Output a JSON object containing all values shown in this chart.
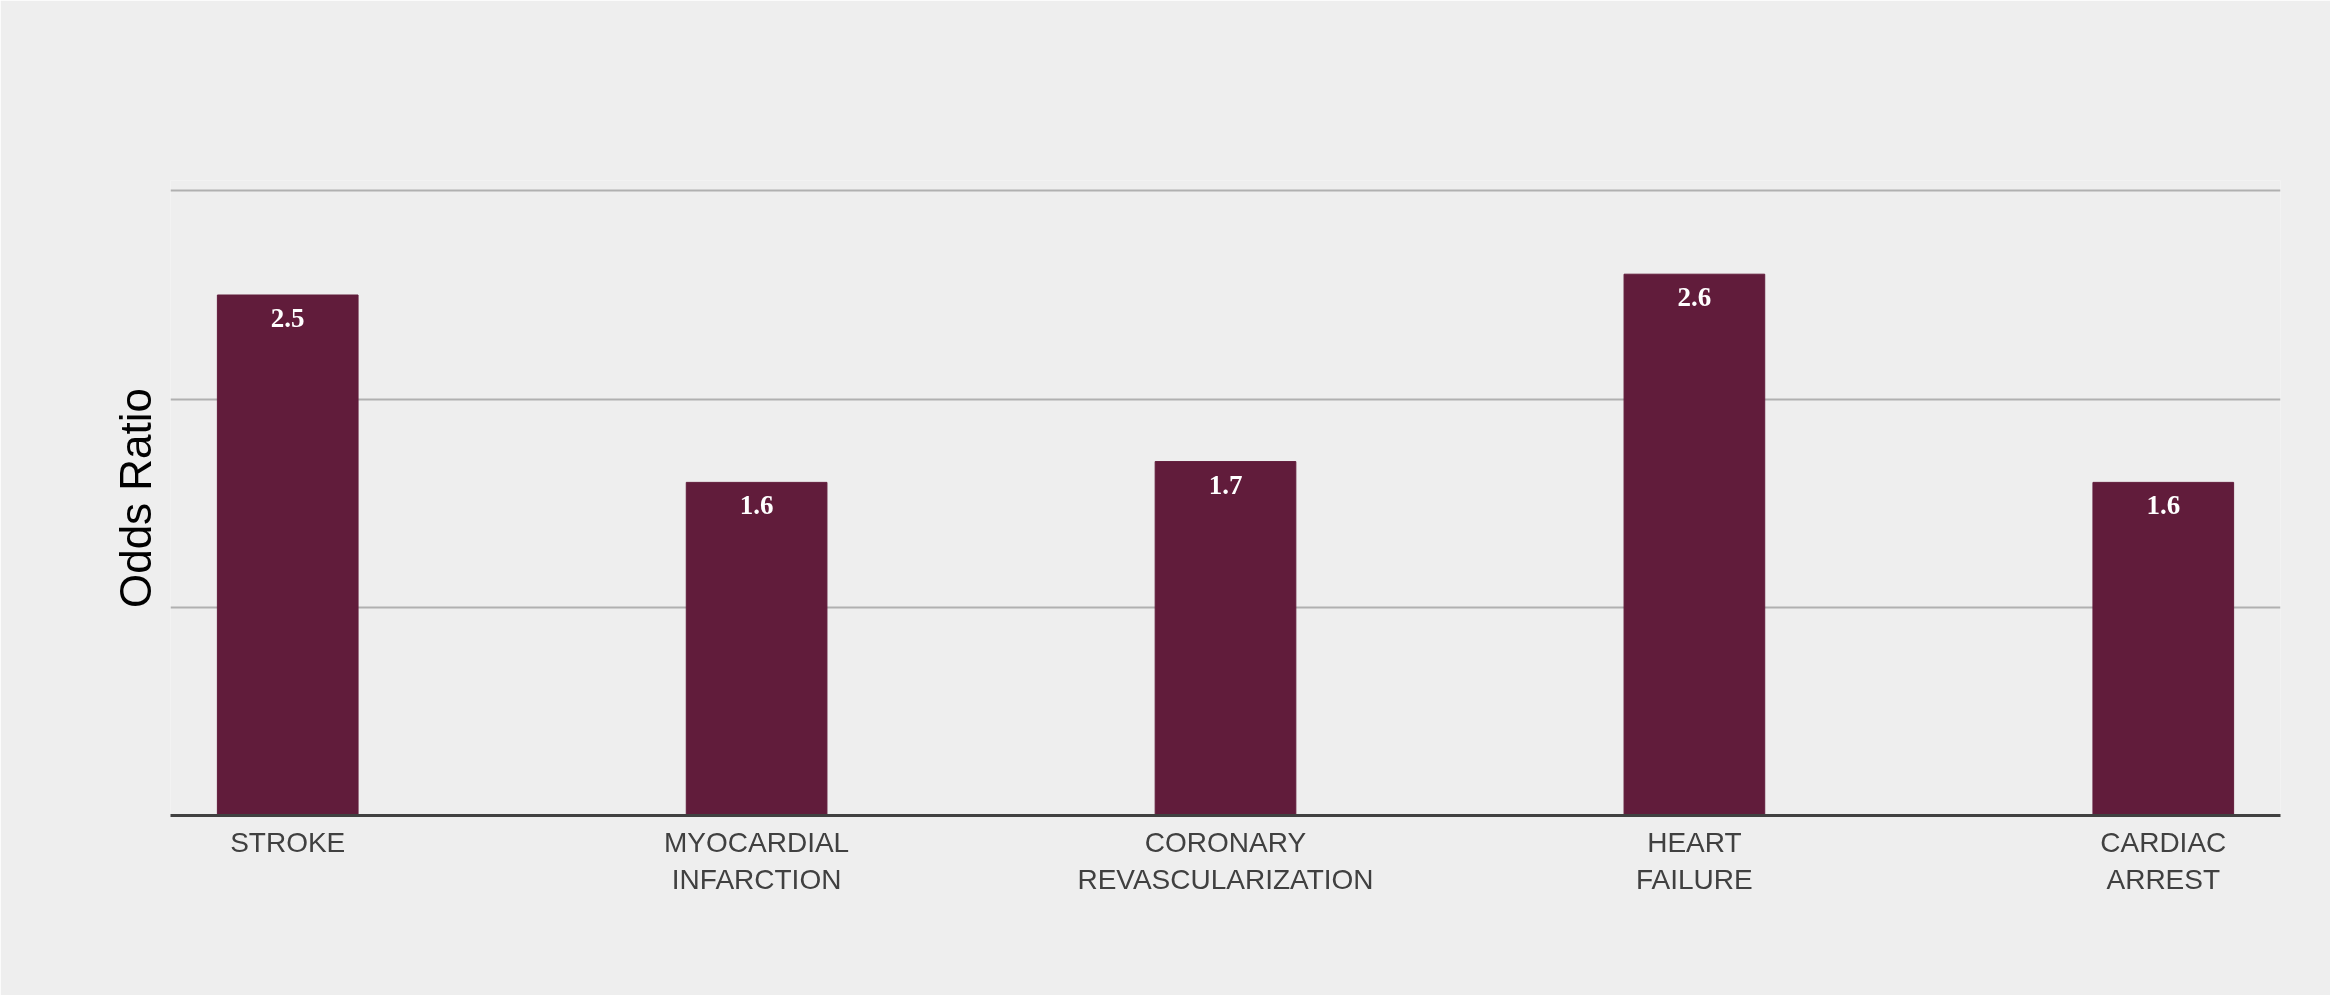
{
  "chart_data": {
    "type": "bar",
    "ylabel": "Odds Ratio",
    "categories": [
      "STROKE",
      "MYOCARDIAL\nINFARCTION",
      "CORONARY\nREVASCULARIZATION",
      "HEART\nFAILURE",
      "CARDIAC\nARREST"
    ],
    "values": [
      2.5,
      1.6,
      1.7,
      2.6,
      1.6
    ],
    "color": "#611c3b",
    "data_labels": true,
    "ylim": [
      0,
      3.05
    ],
    "yticks": [
      {
        "value": 1,
        "label": null
      },
      {
        "value": 2,
        "label": null
      },
      {
        "value": 3,
        "label": null
      }
    ],
    "grid": "y",
    "tick_labels": "x"
  }
}
